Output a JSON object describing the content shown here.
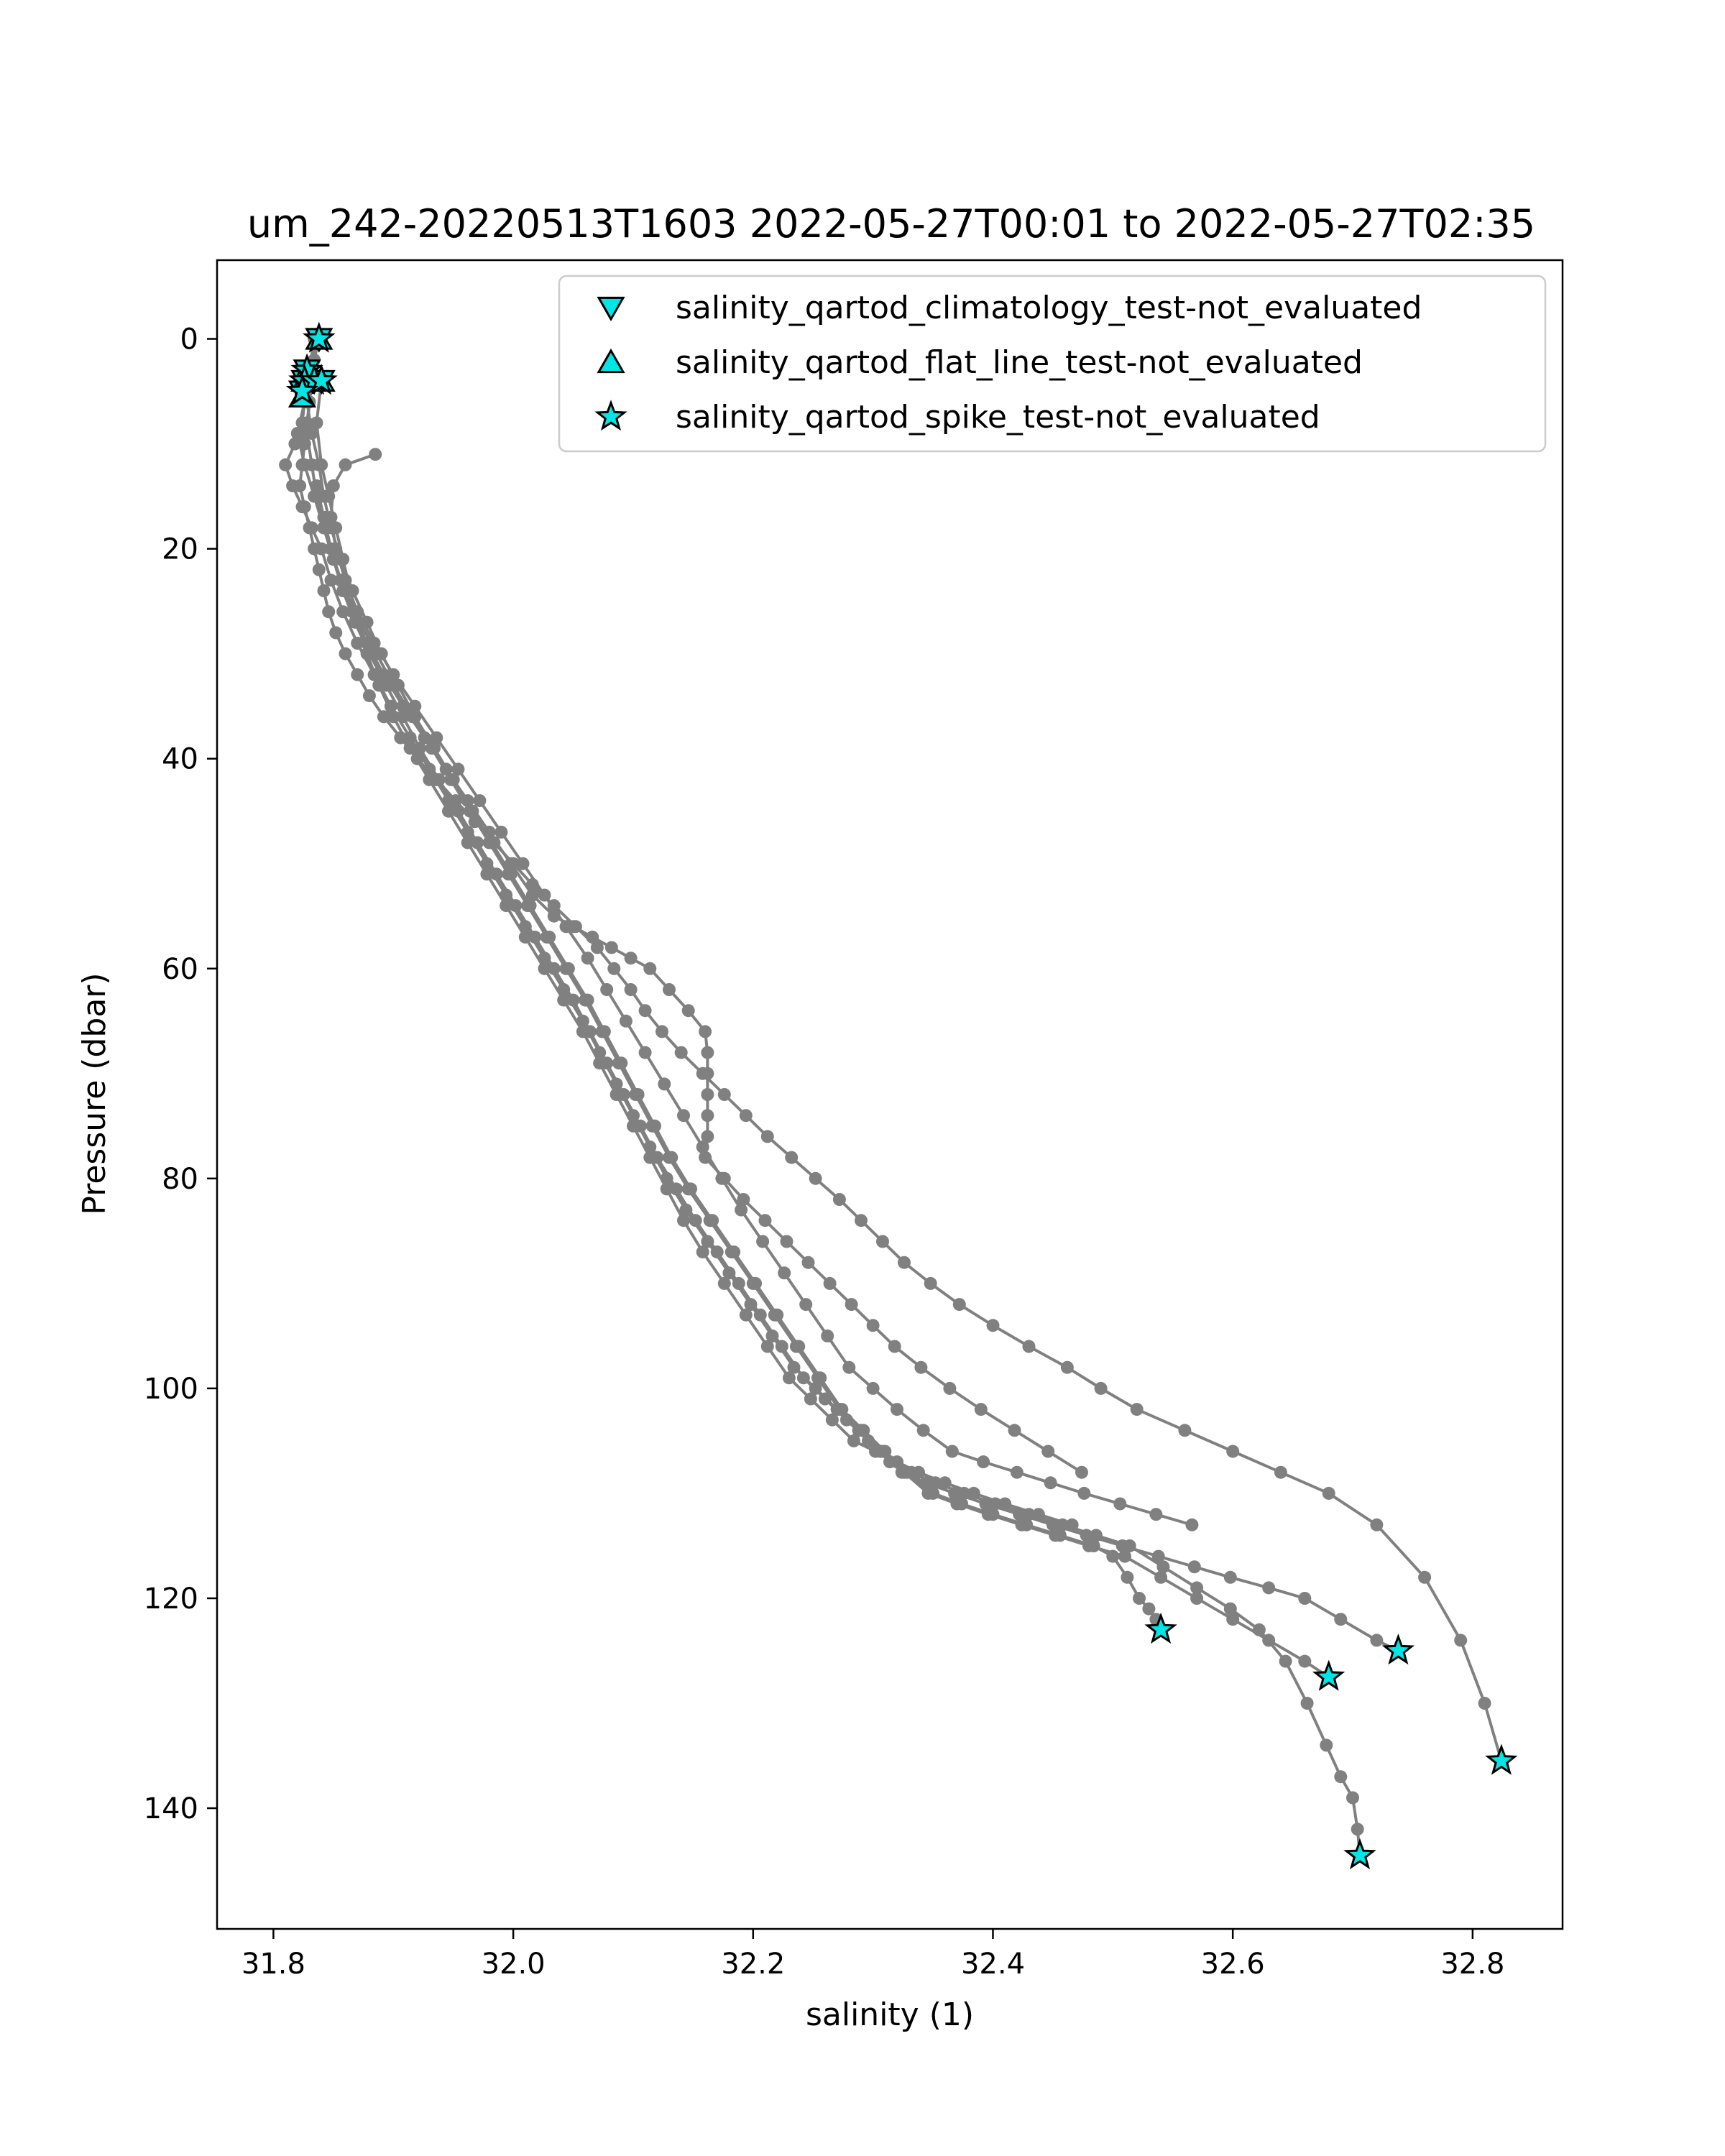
{
  "chart_data": {
    "type": "scatter",
    "title": "um_242-20220513T1603 2022-05-27T00:01 to 2022-05-27T02:35",
    "xlabel": "salinity (1)",
    "ylabel": "Pressure (dbar)",
    "xlim": [
      31.753,
      32.875
    ],
    "ylim": [
      151.5,
      -7.5
    ],
    "y_inverted": true,
    "x_ticks": [
      "31.8",
      "32.0",
      "32.2",
      "32.4",
      "32.6",
      "32.8"
    ],
    "x_tick_values": [
      31.8,
      32.0,
      32.2,
      32.4,
      32.6,
      32.8
    ],
    "y_ticks": [
      "0",
      "20",
      "40",
      "60",
      "80",
      "100",
      "120",
      "140"
    ],
    "y_tick_values": [
      0,
      20,
      40,
      60,
      80,
      100,
      120,
      140
    ],
    "grid": false,
    "legend_position": "upper-right",
    "colors": {
      "profile": "#808080",
      "flag": "#00e5e5",
      "flag_edge": "#000000"
    },
    "profiles": [
      {
        "x": [
          31.838,
          31.834,
          31.832,
          31.83,
          31.828,
          31.826,
          31.824,
          31.822,
          31.826,
          31.83,
          31.834,
          31.838,
          31.842,
          31.846,
          31.852,
          31.86,
          31.87,
          31.88,
          31.892,
          31.906,
          31.92,
          31.936,
          31.952,
          31.968,
          31.984,
          32.0,
          32.016,
          32.034,
          32.052,
          32.07,
          32.084,
          32.098,
          32.11,
          32.124,
          32.14,
          32.158,
          32.176,
          32.194,
          32.212,
          32.232,
          32.252,
          32.272,
          32.29,
          32.308,
          32.326,
          32.348,
          32.372,
          32.4,
          32.43,
          32.462,
          32.49,
          32.52,
          32.56,
          32.6,
          32.64,
          32.68,
          32.72,
          32.76,
          32.79,
          32.81,
          32.824
        ],
        "y": [
          0,
          2,
          4,
          6,
          8,
          10,
          12,
          14,
          16,
          18,
          20,
          22,
          24,
          26,
          28,
          30,
          32,
          34,
          36,
          38,
          40,
          42,
          44,
          46,
          48,
          50,
          52,
          54,
          56,
          58,
          60,
          62,
          64,
          66,
          68,
          70,
          72,
          74,
          76,
          78,
          80,
          82,
          84,
          86,
          88,
          90,
          92,
          94,
          96,
          98,
          100,
          102,
          104,
          106,
          108,
          110,
          113,
          118,
          124,
          130,
          135.5
        ]
      },
      {
        "x": [
          31.836,
          31.832,
          31.828,
          31.832,
          31.838,
          31.842,
          31.848,
          31.856,
          31.866,
          31.878,
          31.89,
          31.904,
          31.918,
          31.934,
          31.95,
          31.966,
          31.982,
          31.998,
          32.014,
          32.03,
          32.046,
          32.062,
          32.076,
          32.09,
          32.104,
          32.118,
          32.132,
          32.148,
          32.166,
          32.184,
          32.202,
          32.22,
          32.238,
          32.256,
          32.274,
          32.292,
          32.31,
          32.328,
          32.35,
          32.374,
          32.4,
          32.428,
          32.456,
          32.484,
          32.5,
          32.512,
          32.522,
          32.53,
          32.536,
          32.54
        ],
        "y": [
          0,
          3,
          6,
          9,
          12,
          15,
          18,
          21,
          24,
          27,
          30,
          33,
          36,
          39,
          42,
          45,
          48,
          51,
          54,
          57,
          60,
          63,
          66,
          69,
          72,
          75,
          78,
          81,
          84,
          87,
          90,
          93,
          96,
          99,
          102,
          104,
          106,
          108,
          110,
          111,
          112,
          113,
          114,
          115,
          116,
          118,
          120,
          121,
          122,
          123
        ]
      },
      {
        "x": [
          31.834,
          31.83,
          31.826,
          31.82,
          31.826,
          31.834,
          31.842,
          31.85,
          31.86,
          31.872,
          31.886,
          31.9,
          31.916,
          31.932,
          31.948,
          31.964,
          31.98,
          31.996,
          32.012,
          32.028,
          32.044,
          32.06,
          32.074,
          32.088,
          32.102,
          32.116,
          32.13,
          32.146,
          32.164,
          32.182,
          32.2,
          32.218,
          32.236,
          32.254,
          32.272,
          32.29,
          32.308,
          32.326,
          32.346,
          32.37,
          32.396,
          32.424,
          32.452,
          32.48,
          32.51,
          32.54,
          32.57,
          32.6,
          32.63,
          32.66,
          32.68
        ],
        "y": [
          0,
          3,
          6,
          9,
          12,
          15,
          18,
          21,
          24,
          27,
          30,
          33,
          36,
          39,
          42,
          45,
          48,
          51,
          54,
          57,
          60,
          63,
          66,
          69,
          72,
          75,
          78,
          81,
          84,
          87,
          90,
          93,
          96,
          99,
          102,
          104,
          106,
          108,
          110,
          111,
          112,
          113,
          114,
          115,
          116,
          118,
          120,
          122,
          124,
          126,
          127.5
        ]
      },
      {
        "x": [
          31.83,
          31.826,
          31.824,
          31.818,
          31.81,
          31.816,
          31.824,
          31.832,
          31.84,
          31.848,
          31.858,
          31.87,
          31.884,
          31.898,
          31.914,
          31.93,
          31.946,
          31.962,
          31.978,
          31.994,
          32.01,
          32.026,
          32.042,
          32.058,
          32.072,
          32.086,
          32.1,
          32.114,
          32.128,
          32.144,
          32.162,
          32.18,
          32.198,
          32.216,
          32.234,
          32.252,
          32.27,
          32.288,
          32.306,
          32.324,
          32.344,
          32.368,
          32.394,
          32.422,
          32.45,
          32.478,
          32.508,
          32.538,
          32.568,
          32.598,
          32.63,
          32.66,
          32.69,
          32.72,
          32.738
        ],
        "y": [
          4,
          6,
          8,
          10,
          12,
          14,
          16,
          18,
          20,
          23,
          26,
          29,
          32,
          35,
          38,
          41,
          44,
          47,
          50,
          53,
          56,
          59,
          62,
          65,
          68,
          71,
          74,
          77,
          80,
          83,
          86,
          89,
          92,
          95,
          98,
          100,
          102,
          104,
          106,
          108,
          109,
          110,
          111,
          112,
          113,
          114,
          115,
          116,
          117,
          118,
          119,
          120,
          122,
          124,
          125
        ]
      },
      {
        "x": [
          31.832,
          31.83,
          31.828,
          31.832,
          31.836,
          31.842,
          31.85,
          31.858,
          31.868,
          31.88,
          31.894,
          31.908,
          31.922,
          31.938,
          31.954,
          31.97,
          31.986,
          32.002,
          32.018,
          32.034,
          32.05,
          32.064,
          32.078,
          32.092,
          32.106,
          32.12,
          32.136,
          32.152,
          32.17,
          32.188,
          32.206,
          32.224,
          32.242,
          32.26,
          32.278,
          32.296,
          32.314,
          32.332,
          32.352,
          32.376,
          32.402,
          32.43,
          32.458,
          32.486,
          32.514,
          32.542,
          32.57,
          32.598,
          32.622,
          32.644,
          32.662,
          32.678,
          32.69,
          32.7,
          32.704,
          32.706
        ],
        "y": [
          4,
          6,
          9,
          12,
          15,
          18,
          21,
          24,
          27,
          30,
          33,
          36,
          39,
          42,
          45,
          48,
          51,
          54,
          57,
          60,
          63,
          66,
          69,
          72,
          75,
          78,
          81,
          84,
          87,
          90,
          93,
          96,
          99,
          101,
          103,
          105,
          107,
          108,
          109,
          110,
          111,
          112,
          113,
          114,
          115,
          117,
          119,
          121,
          123,
          126,
          130,
          134,
          137,
          139,
          142,
          144.5
        ]
      },
      {
        "x": [
          31.84,
          31.836,
          31.84,
          31.846,
          31.852,
          31.858,
          31.864,
          31.87,
          31.878,
          31.888,
          31.9,
          31.914,
          31.93,
          31.946,
          31.962,
          31.978,
          31.994,
          32.01,
          32.026,
          32.042,
          32.058,
          32.072,
          32.086,
          32.1,
          32.114,
          32.128,
          32.142,
          32.158,
          32.176,
          32.194,
          32.212,
          32.23,
          32.248,
          32.266,
          32.284,
          32.302,
          32.32,
          32.338,
          32.36,
          32.384,
          32.41,
          32.438,
          32.466
        ],
        "y": [
          4,
          8,
          12,
          15,
          18,
          21,
          24,
          27,
          30,
          33,
          36,
          39,
          42,
          45,
          48,
          51,
          54,
          57,
          60,
          63,
          66,
          69,
          72,
          75,
          78,
          81,
          84,
          87,
          90,
          93,
          96,
          99,
          101,
          103,
          105,
          106,
          107,
          108,
          109,
          110,
          111,
          112,
          113
        ]
      },
      {
        "x": [
          31.885,
          31.86,
          31.85,
          31.848,
          31.852,
          31.86,
          31.87,
          31.884,
          31.9,
          31.918,
          31.936,
          31.954,
          31.972,
          31.99,
          32.008,
          32.026,
          32.044,
          32.062,
          32.078,
          32.094,
          32.11,
          32.126,
          32.142,
          32.158,
          32.174,
          32.19,
          32.208,
          32.226,
          32.244,
          32.262,
          32.28,
          32.3,
          32.32,
          32.342,
          32.366,
          32.392,
          32.42,
          32.448,
          32.476,
          32.506,
          32.536,
          32.566
        ],
        "y": [
          11,
          12,
          14,
          17,
          20,
          23,
          26,
          29,
          32,
          35,
          38,
          41,
          44,
          47,
          50,
          53,
          56,
          59,
          62,
          65,
          68,
          71,
          74,
          77,
          80,
          83,
          86,
          89,
          92,
          95,
          98,
          100,
          102,
          104,
          106,
          107,
          108,
          109,
          110,
          111,
          112,
          113
        ]
      },
      {
        "x": [
          31.836,
          31.842,
          31.848,
          31.856,
          31.866,
          31.878,
          31.892,
          31.908,
          31.926,
          31.944,
          31.962,
          31.98,
          31.998,
          32.016,
          32.034,
          32.05,
          32.066,
          32.082,
          32.098,
          32.114,
          32.13,
          32.146,
          32.16,
          32.162,
          32.162,
          32.162,
          32.162,
          32.162,
          32.16,
          32.176,
          32.192,
          32.21,
          32.228,
          32.246,
          32.264,
          32.282,
          32.3,
          32.318,
          32.34,
          32.364,
          32.39,
          32.418,
          32.446,
          32.474
        ],
        "y": [
          14,
          17,
          20,
          23,
          26,
          29,
          32,
          35,
          38,
          41,
          44,
          47,
          50,
          53,
          55,
          56,
          57,
          58,
          59,
          60,
          62,
          64,
          66,
          68,
          70,
          72,
          74,
          76,
          78,
          80,
          82,
          84,
          86,
          88,
          90,
          92,
          94,
          96,
          98,
          100,
          102,
          104,
          106,
          108
        ]
      }
    ],
    "flag_series": [
      {
        "name": "salinity_qartod_climatology_test-not_evaluated",
        "marker": "triangle-down",
        "x": [
          31.838,
          31.828,
          31.826,
          31.834,
          31.84,
          31.824
        ],
        "y": [
          0,
          3,
          4,
          4,
          4,
          5
        ]
      },
      {
        "name": "salinity_qartod_flat_line_test-not_evaluated",
        "marker": "triangle-up",
        "x": [
          31.838,
          31.828,
          31.826,
          31.834,
          31.84,
          31.824
        ],
        "y": [
          0,
          3,
          4,
          4,
          4,
          5.5
        ]
      },
      {
        "name": "salinity_qartod_spike_test-not_evaluated",
        "marker": "star",
        "x": [
          31.838,
          31.828,
          31.826,
          31.834,
          31.84,
          31.824,
          32.54,
          32.68,
          32.738,
          32.824,
          32.706
        ],
        "y": [
          0,
          3,
          4,
          4,
          4,
          5,
          123,
          127.5,
          125,
          135.5,
          144.5
        ]
      }
    ]
  }
}
